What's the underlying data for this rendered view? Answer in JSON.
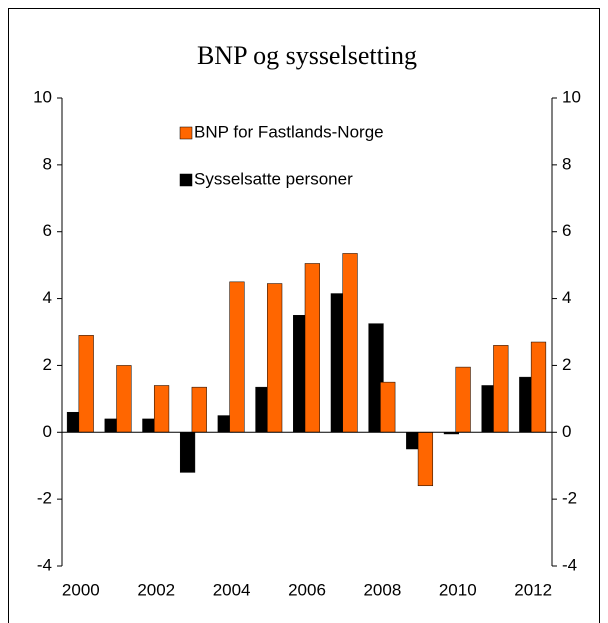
{
  "chart_data": {
    "type": "bar",
    "title": "BNP og sysselsetting",
    "categories": [
      "2000",
      null,
      "2002",
      null,
      "2004",
      null,
      "2006",
      null,
      "2008",
      null,
      "2010",
      null,
      "2012"
    ],
    "series": [
      {
        "name": "Sysselsatte personer",
        "color": "#000000",
        "values": [
          0.6,
          0.4,
          0.4,
          -1.2,
          0.5,
          1.35,
          3.5,
          4.15,
          3.25,
          -0.5,
          -0.05,
          1.4,
          1.65
        ]
      },
      {
        "name": "BNP for Fastlands-Norge",
        "color": "#ff6600",
        "values": [
          2.9,
          2.0,
          1.4,
          1.35,
          4.5,
          4.45,
          5.05,
          5.35,
          1.5,
          -1.6,
          1.95,
          2.6,
          2.7
        ]
      }
    ],
    "ylim": [
      -4,
      10
    ],
    "yticks": [
      -4,
      -2,
      0,
      2,
      4,
      6,
      8,
      10
    ],
    "y2lim": [
      -4,
      10
    ],
    "y2ticks": [
      -4,
      -2,
      0,
      2,
      4,
      6,
      8,
      10
    ],
    "legend": "top-left"
  }
}
